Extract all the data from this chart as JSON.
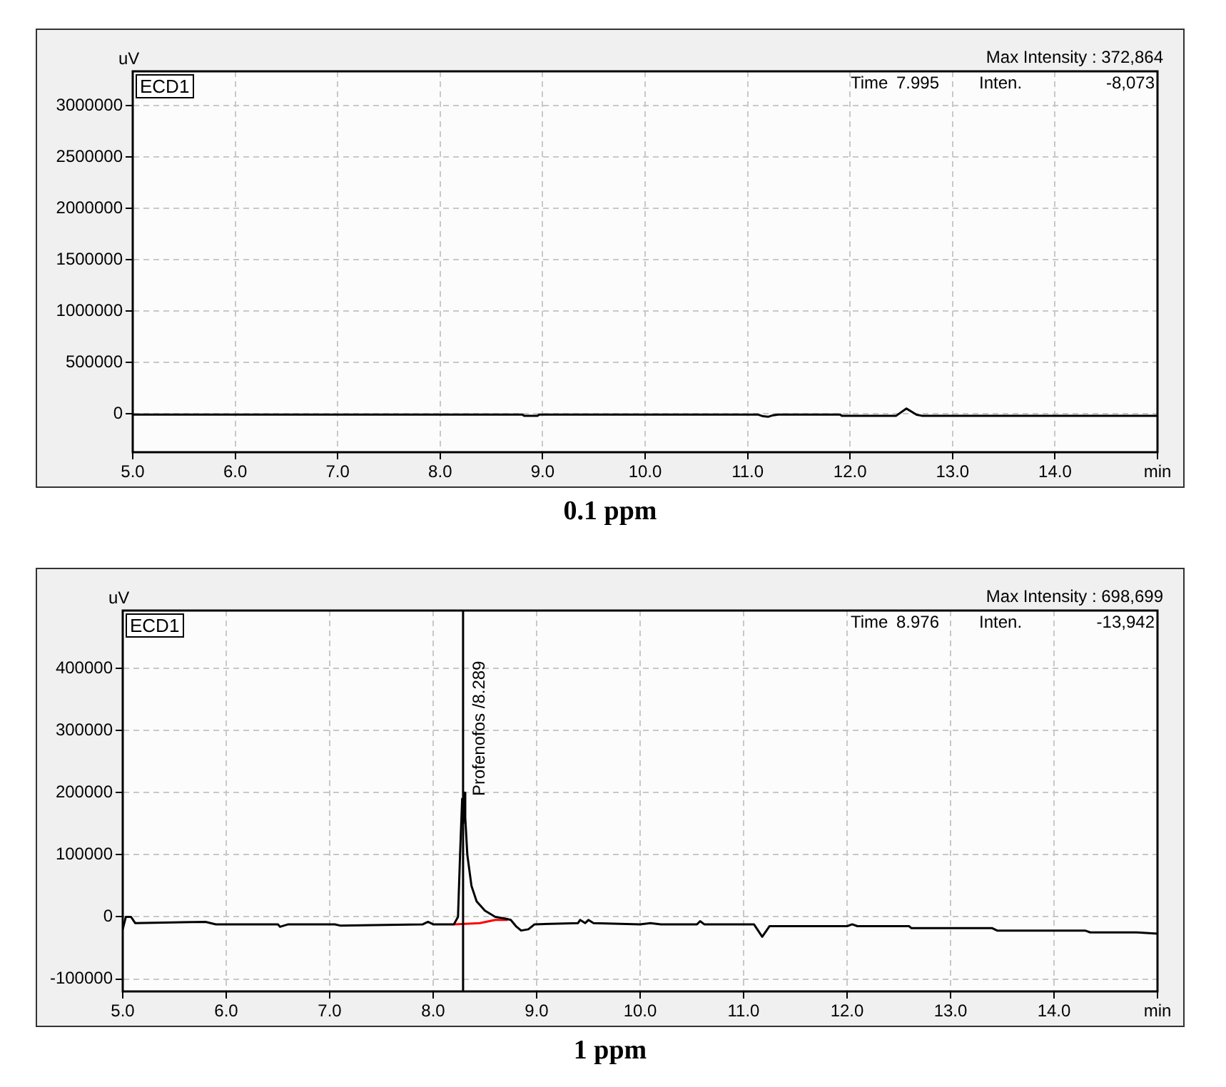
{
  "chart_data": [
    {
      "type": "line",
      "title": "0.1 ppm",
      "ylabel": "uV",
      "annotations": [
        "ECD1",
        "Max Intensity : 372,864",
        "Time",
        "7.995",
        "Inten.",
        "-8,073"
      ],
      "grid": true,
      "legend": false,
      "marker": "none",
      "xlim": [
        5.0,
        15.0
      ],
      "xticks": [
        {
          "value": 5,
          "label": "5.0"
        },
        {
          "value": 6,
          "label": "6.0"
        },
        {
          "value": 7,
          "label": "7.0"
        },
        {
          "value": 8,
          "label": "8.0"
        },
        {
          "value": 9,
          "label": "9.0"
        },
        {
          "value": 10,
          "label": "10.0"
        },
        {
          "value": 11,
          "label": "11.0"
        },
        {
          "value": 12,
          "label": "12.0"
        },
        {
          "value": 13,
          "label": "13.0"
        },
        {
          "value": 14,
          "label": "14.0"
        },
        {
          "value": 15,
          "label": "min"
        }
      ],
      "ylim": [
        -375000,
        3333000
      ],
      "yticks": [
        0,
        500000,
        1000000,
        1500000,
        2000000,
        2500000,
        3000000
      ],
      "series": [
        {
          "color": "#000000",
          "x": [
            5.0,
            8.8,
            8.82,
            8.95,
            8.97,
            11.1,
            11.15,
            11.2,
            11.25,
            11.3,
            11.9,
            11.92,
            12.45,
            12.55,
            12.65,
            12.7,
            15.0
          ],
          "values": [
            -8000,
            -8000,
            -20000,
            -20000,
            -8000,
            -8000,
            -25000,
            -30000,
            -15000,
            -8000,
            -8000,
            -20000,
            -20000,
            50000,
            -10000,
            -20000,
            -20000
          ]
        }
      ]
    },
    {
      "type": "line",
      "title": "1 ppm",
      "ylabel": "uV",
      "annotations": [
        "ECD1",
        "Max Intensity : 698,699",
        "Time",
        "8.976",
        "Inten.",
        "-13,942"
      ],
      "grid": true,
      "legend": false,
      "marker": "none",
      "xlim": [
        5.0,
        15.0
      ],
      "xticks": [
        {
          "value": 5,
          "label": "5.0"
        },
        {
          "value": 6,
          "label": "6.0"
        },
        {
          "value": 7,
          "label": "7.0"
        },
        {
          "value": 8,
          "label": "8.0"
        },
        {
          "value": 9,
          "label": "9.0"
        },
        {
          "value": 10,
          "label": "10.0"
        },
        {
          "value": 11,
          "label": "11.0"
        },
        {
          "value": 12,
          "label": "12.0"
        },
        {
          "value": 13,
          "label": "13.0"
        },
        {
          "value": 14,
          "label": "14.0"
        },
        {
          "value": 15,
          "label": "min"
        }
      ],
      "ylim": [
        -120000,
        493000
      ],
      "yticks": [
        -100000,
        0,
        100000,
        200000,
        300000,
        400000
      ],
      "ref_lines": [
        {
          "axis": "x",
          "value": 8.289,
          "label": "Profenofos /8.289",
          "color": "#000000"
        }
      ],
      "series": [
        {
          "color": "#000000",
          "x": [
            5.0,
            5.03,
            5.08,
            5.12,
            5.8,
            5.9,
            6.5,
            6.52,
            6.6,
            7.05,
            7.1,
            7.9,
            7.95,
            8.0,
            8.2,
            8.24,
            8.26,
            8.28,
            8.29,
            8.3,
            8.31,
            8.33,
            8.37,
            8.42,
            8.5,
            8.6,
            8.7,
            8.75,
            8.8,
            8.85,
            8.92,
            8.98,
            9.4,
            9.42,
            9.47,
            9.5,
            9.55,
            10.0,
            10.1,
            10.2,
            10.55,
            10.58,
            10.62,
            11.1,
            11.18,
            11.25,
            12.0,
            12.05,
            12.1,
            12.6,
            12.62,
            13.4,
            13.45,
            14.3,
            14.35,
            14.8,
            15.0
          ],
          "values": [
            -20000,
            0,
            0,
            -10000,
            -8000,
            -12000,
            -12000,
            -16000,
            -12000,
            -12000,
            -14000,
            -12000,
            -8000,
            -12000,
            -12000,
            0,
            100000,
            190000,
            150000,
            200000,
            160000,
            100000,
            50000,
            25000,
            10000,
            0,
            -3000,
            -5000,
            -15000,
            -22000,
            -20000,
            -12000,
            -10000,
            -5000,
            -10000,
            -5000,
            -10000,
            -12000,
            -10000,
            -12000,
            -12000,
            -7000,
            -12000,
            -12000,
            -32000,
            -15000,
            -15000,
            -12000,
            -15000,
            -15000,
            -18000,
            -18000,
            -22000,
            -22000,
            -25000,
            -25000,
            -27000
          ]
        },
        {
          "color": "#ff0000",
          "x": [
            8.2,
            8.45,
            8.6,
            8.72
          ],
          "values": [
            -12000,
            -10000,
            -5000,
            -5000
          ]
        }
      ]
    }
  ]
}
